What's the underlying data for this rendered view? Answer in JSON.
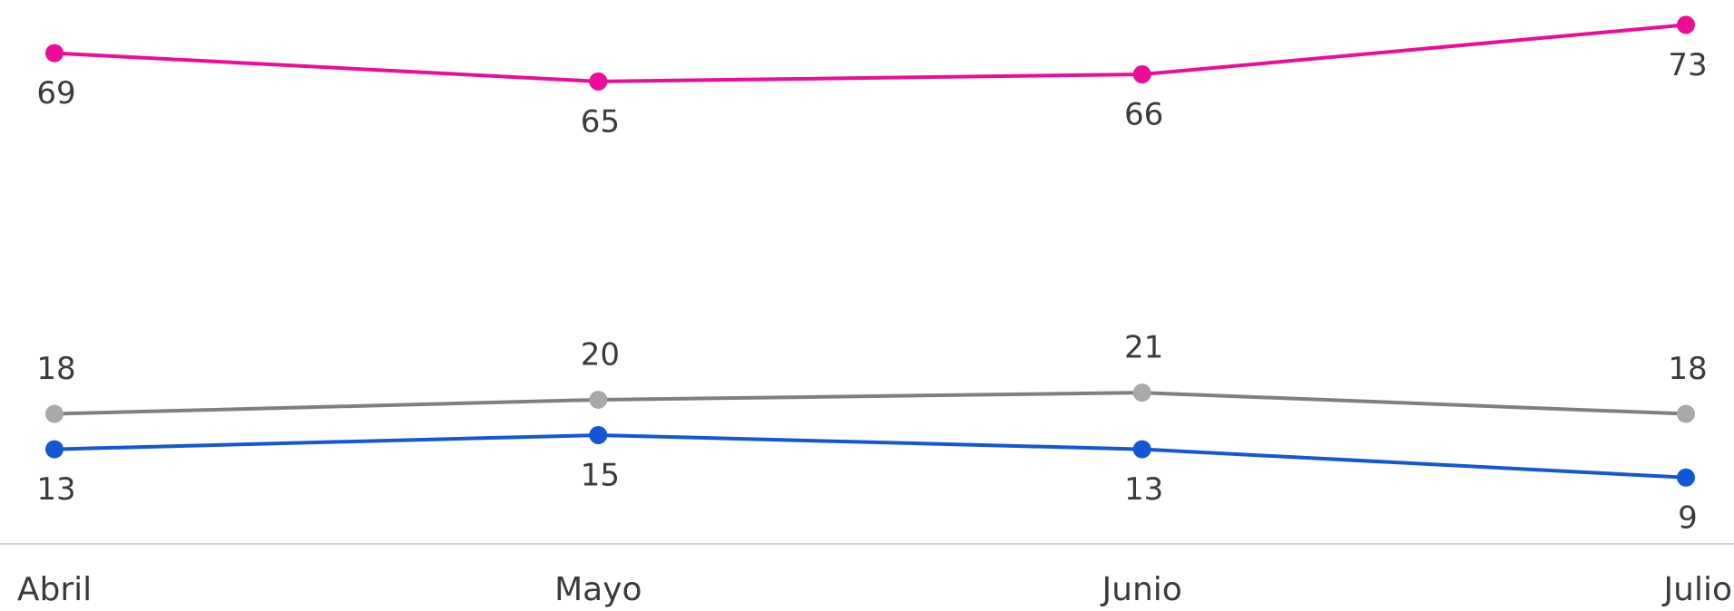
{
  "chart_data": {
    "type": "line",
    "categories": [
      "Abril",
      "Mayo",
      "Junio",
      "Julio"
    ],
    "series": [
      {
        "color": "#ec0c97",
        "values": [
          69,
          65,
          66,
          73
        ]
      },
      {
        "color": "#7f7f7f",
        "marker_color": "#a9a9a9",
        "values": [
          18,
          20,
          21,
          18
        ]
      },
      {
        "color": "#1257d6",
        "values": [
          13,
          15,
          13,
          9
        ]
      }
    ],
    "ylim": [
      0,
      76
    ],
    "grid": false
  }
}
